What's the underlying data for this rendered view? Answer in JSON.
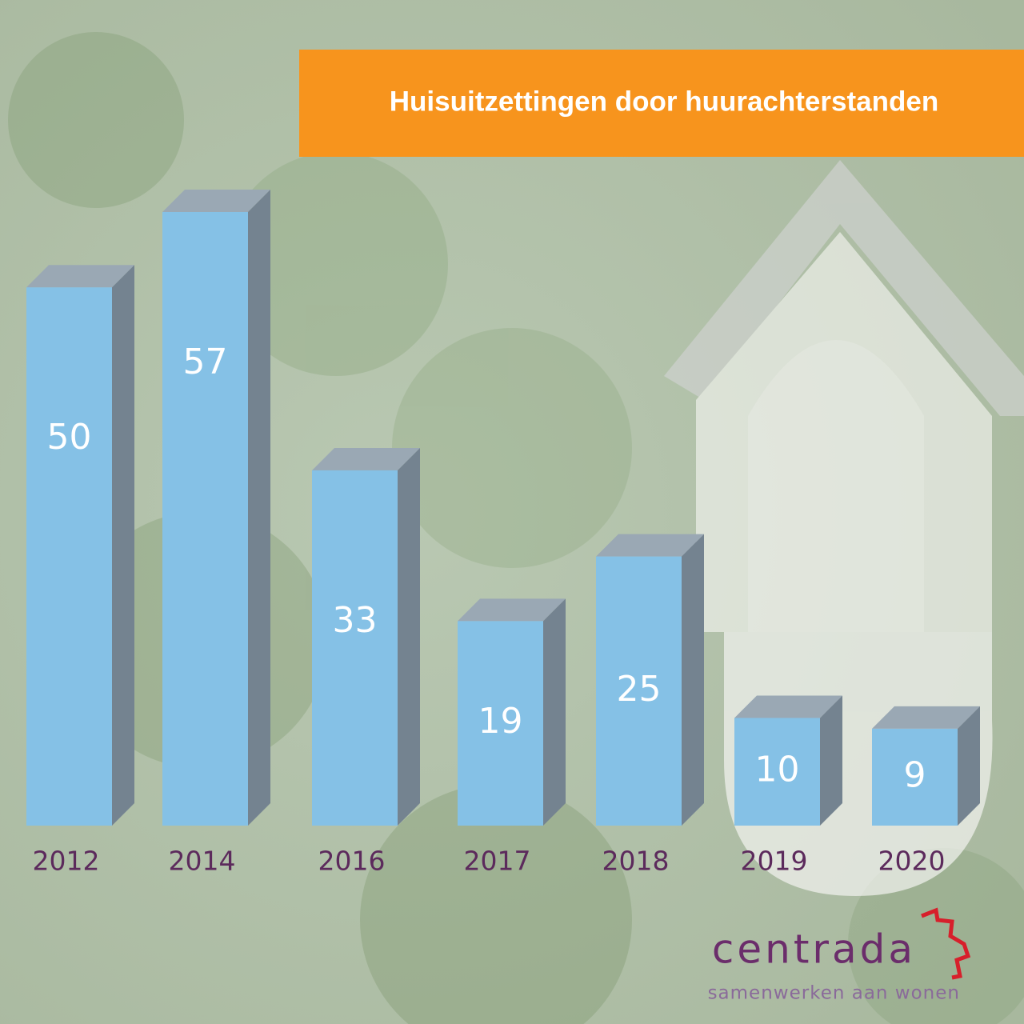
{
  "chart_data": {
    "type": "bar3d",
    "title": "Huisuitzettingen door huurachterstanden",
    "categories": [
      "2012",
      "2014",
      "2016",
      "2017",
      "2018",
      "2019",
      "2020"
    ],
    "values": [
      50,
      57,
      33,
      19,
      25,
      10,
      9
    ],
    "color": "#85c1e6"
  },
  "logo": {
    "name": "centrada",
    "tagline": "samenwerken aan wonen"
  }
}
